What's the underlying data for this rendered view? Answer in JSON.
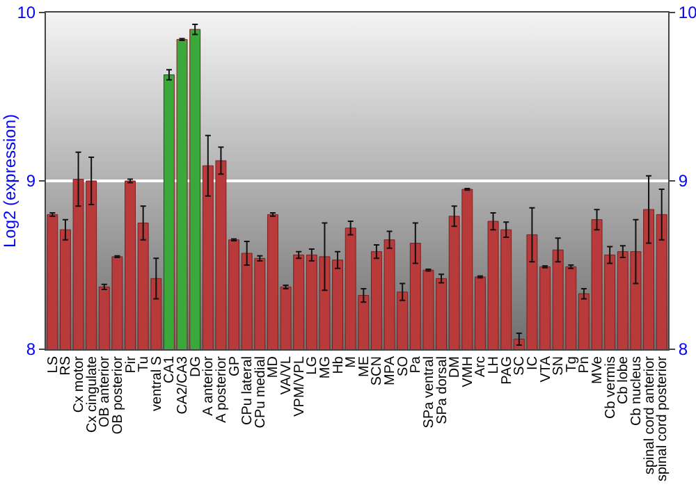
{
  "chart_data": {
    "type": "bar",
    "ylabel": "Log2 (expression)",
    "categories": [
      "LS",
      "RS",
      "Cx motor",
      "Cx cingulate",
      "OB anterior",
      "OB posterior",
      "Pir",
      "Tu",
      "ventral S",
      "CA1",
      "CA2/CA3",
      "DG",
      "A anterior",
      "A posterior",
      "GP",
      "CPu lateral",
      "CPu medial",
      "MD",
      "VA/VL",
      "VPM/VPL",
      "LG",
      "MG",
      "Hb",
      "M",
      "ME",
      "SCN",
      "MPA",
      "SO",
      "Pa",
      "SPa ventral",
      "SPa dorsal",
      "DM",
      "VMH",
      "Arc",
      "LH",
      "PAG",
      "SC",
      "IC",
      "VTA",
      "SN",
      "Tg",
      "Pn",
      "MVe",
      "Cb vermis",
      "Cb lobe",
      "Cb nucleus",
      "spinal cord anterior",
      "spinal cord posterior"
    ],
    "values": [
      8.8,
      8.71,
      9.01,
      9.0,
      8.37,
      8.55,
      9.0,
      8.75,
      8.42,
      9.63,
      9.84,
      9.9,
      9.09,
      9.12,
      8.65,
      8.57,
      8.54,
      8.8,
      8.37,
      8.56,
      8.56,
      8.55,
      8.53,
      8.72,
      8.32,
      8.58,
      8.65,
      8.34,
      8.63,
      8.47,
      8.42,
      8.79,
      8.95,
      8.43,
      8.76,
      8.71,
      8.06,
      8.68,
      8.49,
      8.59,
      8.49,
      8.33,
      8.77,
      8.56,
      8.58,
      8.58,
      8.83,
      8.8
    ],
    "errors": [
      0.01,
      0.06,
      0.16,
      0.14,
      0.015,
      0.005,
      0.01,
      0.1,
      0.12,
      0.03,
      0.005,
      0.03,
      0.18,
      0.08,
      0.005,
      0.07,
      0.015,
      0.01,
      0.01,
      0.02,
      0.035,
      0.2,
      0.05,
      0.04,
      0.04,
      0.04,
      0.05,
      0.05,
      0.12,
      0.005,
      0.025,
      0.06,
      0.005,
      0.005,
      0.05,
      0.045,
      0.035,
      0.16,
      0.005,
      0.07,
      0.01,
      0.03,
      0.06,
      0.05,
      0.035,
      0.19,
      0.2,
      0.15
    ],
    "colors": [
      "#b83a3a",
      "#b83a3a",
      "#b83a3a",
      "#b83a3a",
      "#b83a3a",
      "#b83a3a",
      "#b83a3a",
      "#b83a3a",
      "#b83a3a",
      "#3aa83a",
      "#3aa83a",
      "#3aa83a",
      "#b83a3a",
      "#b83a3a",
      "#b83a3a",
      "#b83a3a",
      "#b83a3a",
      "#b83a3a",
      "#b83a3a",
      "#b83a3a",
      "#b83a3a",
      "#b83a3a",
      "#b83a3a",
      "#b83a3a",
      "#b83a3a",
      "#b83a3a",
      "#b83a3a",
      "#b83a3a",
      "#b83a3a",
      "#b83a3a",
      "#b83a3a",
      "#b83a3a",
      "#b83a3a",
      "#b83a3a",
      "#b83a3a",
      "#b83a3a",
      "#b83a3a",
      "#b83a3a",
      "#b83a3a",
      "#b83a3a",
      "#b83a3a",
      "#b83a3a",
      "#b83a3a",
      "#b83a3a",
      "#b83a3a",
      "#b83a3a",
      "#b83a3a",
      "#b83a3a"
    ],
    "ylim": [
      8,
      10
    ],
    "yticks": [
      8,
      9,
      10
    ],
    "y2lim": [
      8,
      10
    ],
    "y2ticks": [
      8,
      9,
      10
    ],
    "grid": "y"
  }
}
